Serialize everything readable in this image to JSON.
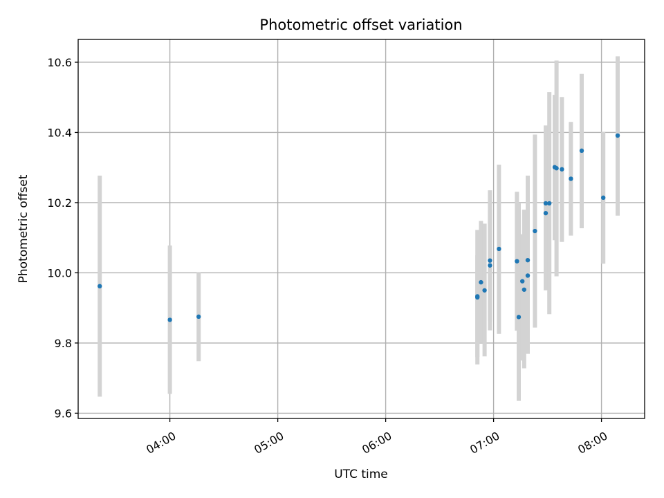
{
  "chart_data": {
    "type": "scatter",
    "title": "Photometric offset variation",
    "xlabel": "UTC time",
    "ylabel": "Photometric offset",
    "x_ticks": [
      "04:00",
      "05:00",
      "06:00",
      "07:00",
      "08:00"
    ],
    "y_ticks": [
      9.6,
      9.8,
      10.0,
      10.2,
      10.4,
      10.6
    ],
    "xlim": [
      "03:09",
      "08:24"
    ],
    "ylim": [
      9.585,
      10.665
    ],
    "grid": true,
    "marker_color": "#1f77b4",
    "errorbar_color": "#d3d3d3",
    "points": [
      {
        "t": "03:21",
        "y": 9.962,
        "lo": 9.647,
        "hi": 10.277
      },
      {
        "t": "04:00",
        "y": 9.866,
        "lo": 9.655,
        "hi": 10.078
      },
      {
        "t": "04:16",
        "y": 9.875,
        "lo": 9.748,
        "hi": 10.0
      },
      {
        "t": "06:51",
        "y": 9.93,
        "lo": 9.739,
        "hi": 10.122
      },
      {
        "t": "06:51",
        "y": 9.933,
        "lo": 9.76,
        "hi": 10.05
      },
      {
        "t": "06:53",
        "y": 9.973,
        "lo": 9.8,
        "hi": 10.148
      },
      {
        "t": "06:55",
        "y": 9.95,
        "lo": 9.762,
        "hi": 10.14
      },
      {
        "t": "06:58",
        "y": 10.035,
        "lo": 9.836,
        "hi": 10.235
      },
      {
        "t": "06:58",
        "y": 10.021,
        "lo": 9.86,
        "hi": 10.18
      },
      {
        "t": "07:03",
        "y": 10.068,
        "lo": 9.826,
        "hi": 10.308
      },
      {
        "t": "07:13",
        "y": 10.033,
        "lo": 9.835,
        "hi": 10.231
      },
      {
        "t": "07:14",
        "y": 9.874,
        "lo": 9.635,
        "hi": 10.2
      },
      {
        "t": "07:16",
        "y": 9.976,
        "lo": 9.75,
        "hi": 10.11
      },
      {
        "t": "07:17",
        "y": 9.952,
        "lo": 9.728,
        "hi": 10.18
      },
      {
        "t": "07:19",
        "y": 9.992,
        "lo": 9.8,
        "hi": 10.2
      },
      {
        "t": "07:19",
        "y": 10.036,
        "lo": 9.769,
        "hi": 10.277
      },
      {
        "t": "07:23",
        "y": 10.119,
        "lo": 9.844,
        "hi": 10.394
      },
      {
        "t": "07:29",
        "y": 10.17,
        "lo": 9.95,
        "hi": 10.39
      },
      {
        "t": "07:29",
        "y": 10.198,
        "lo": 9.98,
        "hi": 10.42
      },
      {
        "t": "07:31",
        "y": 10.198,
        "lo": 9.882,
        "hi": 10.515
      },
      {
        "t": "07:34",
        "y": 10.301,
        "lo": 10.093,
        "hi": 10.507
      },
      {
        "t": "07:35",
        "y": 10.298,
        "lo": 9.99,
        "hi": 10.605
      },
      {
        "t": "07:38",
        "y": 10.295,
        "lo": 10.088,
        "hi": 10.501
      },
      {
        "t": "07:43",
        "y": 10.268,
        "lo": 10.106,
        "hi": 10.43
      },
      {
        "t": "07:49",
        "y": 10.348,
        "lo": 10.127,
        "hi": 10.567
      },
      {
        "t": "08:01",
        "y": 10.214,
        "lo": 10.026,
        "hi": 10.402
      },
      {
        "t": "08:09",
        "y": 10.391,
        "lo": 10.163,
        "hi": 10.617
      }
    ]
  }
}
